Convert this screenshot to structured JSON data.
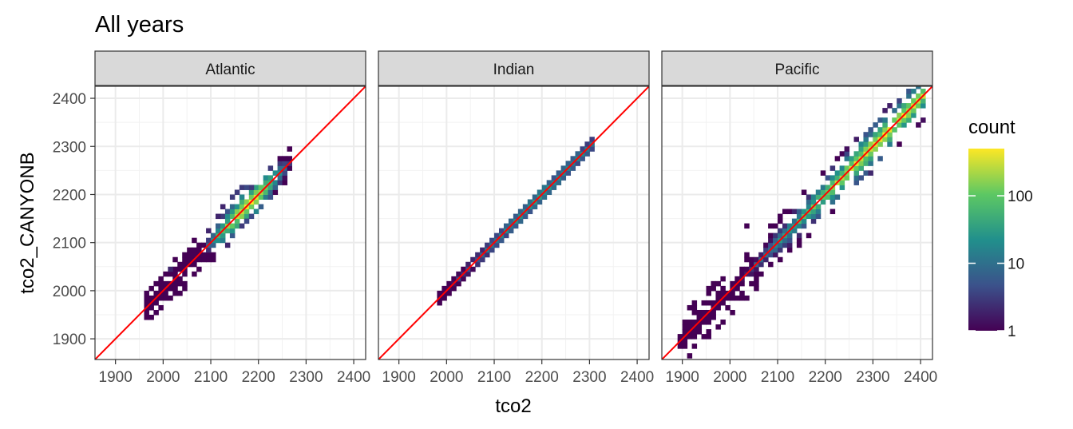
{
  "chart_data": {
    "type": "heatmap",
    "title": "All years",
    "xlabel": "tco2",
    "ylabel": "tco2_CANYONB",
    "xlim": [
      1857,
      2425
    ],
    "ylim": [
      1857,
      2425
    ],
    "x_ticks": [
      1900,
      2000,
      2100,
      2200,
      2300,
      2400
    ],
    "y_ticks": [
      1900,
      2000,
      2100,
      2200,
      2300,
      2400
    ],
    "x_tick_labels": [
      "1900",
      "2000",
      "2100",
      "2200",
      "2300",
      "2400"
    ],
    "y_tick_labels": [
      "1900",
      "2000",
      "2100",
      "2200",
      "2300",
      "2400"
    ],
    "grid": true,
    "reference_line": {
      "slope": 1,
      "intercept": 0,
      "color": "#ff0000"
    },
    "bin_width": 10,
    "fill_scale": "log10",
    "legend": {
      "title": "count",
      "position": "right",
      "breaks": [
        1,
        10,
        100
      ],
      "labels": [
        "1",
        "10",
        "100"
      ],
      "range": [
        1,
        500
      ],
      "palette": [
        "#440154",
        "#3b528b",
        "#21908c",
        "#5dc863",
        "#fde725"
      ]
    },
    "facets": [
      {
        "name": "Atlantic",
        "bands": [
          {
            "from": 1960,
            "to": 2260,
            "width": 3,
            "peak": 450,
            "center": 2170,
            "spread": 40
          }
        ],
        "extra_cells": [
          [
            1960,
            1960,
            1
          ],
          [
            1970,
            1970,
            1
          ],
          [
            1980,
            2010,
            1
          ],
          [
            1980,
            1950,
            1
          ],
          [
            1990,
            2020,
            1
          ],
          [
            2000,
            2030,
            2
          ],
          [
            2000,
            1980,
            1
          ],
          [
            2010,
            2040,
            2
          ],
          [
            2020,
            2060,
            1
          ],
          [
            2030,
            1990,
            1
          ],
          [
            2040,
            2000,
            1
          ],
          [
            2050,
            2080,
            1
          ],
          [
            2060,
            2100,
            1
          ],
          [
            2080,
            2070,
            2
          ],
          [
            2090,
            2060,
            1
          ],
          [
            2090,
            2120,
            2
          ],
          [
            2100,
            2060,
            1
          ],
          [
            2110,
            2150,
            2
          ],
          [
            2120,
            2170,
            2
          ],
          [
            2130,
            2090,
            2
          ],
          [
            2140,
            2190,
            3
          ],
          [
            2150,
            2200,
            3
          ],
          [
            2160,
            2130,
            3
          ],
          [
            2160,
            2210,
            3
          ],
          [
            2170,
            2140,
            4
          ],
          [
            2170,
            2210,
            4
          ],
          [
            2180,
            2150,
            4
          ],
          [
            2180,
            2210,
            3
          ],
          [
            2190,
            2210,
            3
          ],
          [
            2200,
            2210,
            3
          ],
          [
            2210,
            2220,
            4
          ],
          [
            2220,
            2230,
            4
          ],
          [
            2240,
            2260,
            3
          ]
        ]
      },
      {
        "name": "Indian",
        "bands": [
          {
            "from": 1980,
            "to": 2300,
            "width": 1,
            "peak": 25,
            "center": 2200,
            "spread": 120
          }
        ],
        "extra_cells": [
          [
            2040,
            2050,
            1
          ],
          [
            2080,
            2090,
            2
          ],
          [
            2200,
            2210,
            3
          ],
          [
            2260,
            2270,
            3
          ],
          [
            2290,
            2300,
            5
          ],
          [
            2300,
            2310,
            5
          ]
        ]
      },
      {
        "name": "Pacific",
        "bands": [
          {
            "from": 1890,
            "to": 2400,
            "width": 5,
            "peak": 400,
            "center": 2320,
            "spread": 130
          }
        ],
        "extra_cells": [
          [
            2030,
            2130,
            1
          ],
          [
            1890,
            1900,
            4
          ],
          [
            1900,
            1910,
            6
          ],
          [
            2010,
            2020,
            60
          ],
          [
            2020,
            2030,
            80
          ],
          [
            2080,
            2090,
            90
          ],
          [
            2150,
            2160,
            120
          ],
          [
            2250,
            2260,
            200
          ],
          [
            2350,
            2360,
            350
          ],
          [
            2380,
            2390,
            250
          ],
          [
            2400,
            2390,
            3
          ]
        ]
      }
    ]
  }
}
